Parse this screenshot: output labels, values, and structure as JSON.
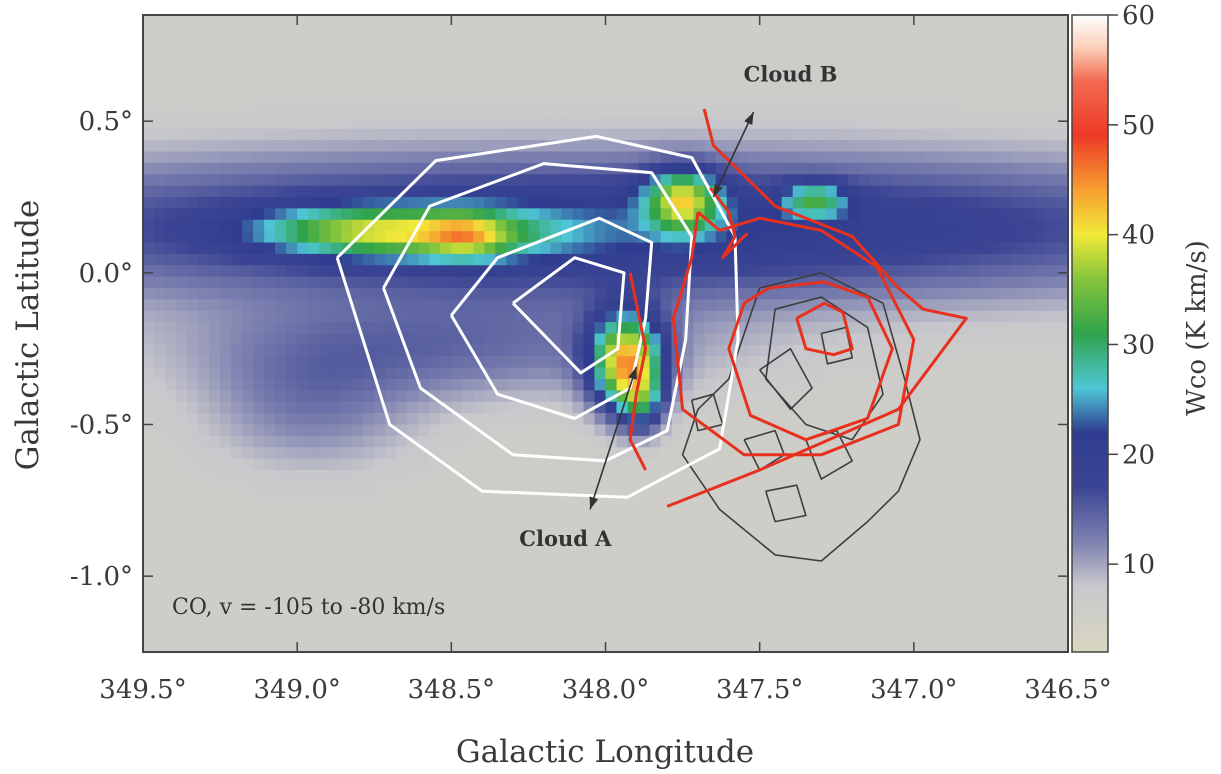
{
  "chart_data": {
    "type": "heatmap",
    "xlabel": "Galactic Longitude",
    "ylabel": "Galactic Latitude",
    "colorbar_label": "Wco (K km/s)",
    "xlim": [
      349.5,
      346.5
    ],
    "ylim": [
      -1.25,
      0.85
    ],
    "x_ticks": [
      {
        "value": 349.5,
        "label": "349.5°"
      },
      {
        "value": 349.0,
        "label": "349.0°"
      },
      {
        "value": 348.5,
        "label": "348.5°"
      },
      {
        "value": 348.0,
        "label": "348.0°"
      },
      {
        "value": 347.5,
        "label": "347.5°"
      },
      {
        "value": 347.0,
        "label": "347.0°"
      },
      {
        "value": 346.5,
        "label": "346.5°"
      }
    ],
    "y_ticks": [
      {
        "value": 0.5,
        "label": "0.5°"
      },
      {
        "value": 0.0,
        "label": "0.0°"
      },
      {
        "value": -0.5,
        "label": "-0.5°"
      },
      {
        "value": -1.0,
        "label": "-1.0°"
      }
    ],
    "colorbar": {
      "range": [
        2,
        60
      ],
      "ticks": [
        {
          "value": 10,
          "label": "10"
        },
        {
          "value": 20,
          "label": "20"
        },
        {
          "value": 30,
          "label": "30"
        },
        {
          "value": 40,
          "label": "40"
        },
        {
          "value": 50,
          "label": "50"
        },
        {
          "value": 60,
          "label": "60"
        }
      ],
      "stops": [
        {
          "v": 2,
          "c": "#d9d7c0"
        },
        {
          "v": 8,
          "c": "#c8c8cc"
        },
        {
          "v": 12,
          "c": "#7e82b0"
        },
        {
          "v": 17,
          "c": "#3c4594"
        },
        {
          "v": 22,
          "c": "#2f3c8f"
        },
        {
          "v": 26,
          "c": "#4fc6d6"
        },
        {
          "v": 31,
          "c": "#2fa34a"
        },
        {
          "v": 36,
          "c": "#86c53c"
        },
        {
          "v": 40,
          "c": "#f2ea38"
        },
        {
          "v": 44,
          "c": "#f6a030"
        },
        {
          "v": 49,
          "c": "#ee3a28"
        },
        {
          "v": 54,
          "c": "#f26a50"
        },
        {
          "v": 57,
          "c": "#fbcfb8"
        },
        {
          "v": 60,
          "c": "#ffffff"
        }
      ]
    },
    "emission_blobs": [
      {
        "l": 348.55,
        "b": 0.13,
        "sl": 0.28,
        "sb": 0.06,
        "amp": 14
      },
      {
        "l": 348.85,
        "b": 0.14,
        "sl": 0.22,
        "sb": 0.05,
        "amp": 10
      },
      {
        "l": 348.45,
        "b": 0.12,
        "sl": 0.09,
        "sb": 0.05,
        "amp": 10
      },
      {
        "l": 347.75,
        "b": 0.24,
        "sl": 0.08,
        "sb": 0.07,
        "amp": 22
      },
      {
        "l": 347.32,
        "b": 0.24,
        "sl": 0.07,
        "sb": 0.04,
        "amp": 14
      },
      {
        "l": 347.93,
        "b": -0.3,
        "sl": 0.08,
        "sb": 0.11,
        "amp": 34
      },
      {
        "l": 347.88,
        "b": -0.43,
        "sl": 0.05,
        "sb": 0.07,
        "amp": 12
      },
      {
        "l": 348.0,
        "b": 0.15,
        "sl": 1.6,
        "sb": 0.17,
        "amp": 16
      },
      {
        "l": 348.5,
        "b": -0.25,
        "sl": 0.6,
        "sb": 0.12,
        "amp": 7
      },
      {
        "l": 348.95,
        "b": -0.45,
        "sl": 0.25,
        "sb": 0.15,
        "amp": 6
      }
    ],
    "background_level": 6,
    "white_contours": [
      [
        [
          348.87,
          0.05
        ],
        [
          348.55,
          0.37
        ],
        [
          348.03,
          0.45
        ],
        [
          347.72,
          0.38
        ],
        [
          347.58,
          0.12
        ],
        [
          347.57,
          -0.22
        ],
        [
          347.63,
          -0.58
        ],
        [
          347.93,
          -0.74
        ],
        [
          348.4,
          -0.72
        ],
        [
          348.7,
          -0.5
        ],
        [
          348.87,
          0.05
        ]
      ],
      [
        [
          348.72,
          -0.05
        ],
        [
          348.57,
          0.22
        ],
        [
          348.2,
          0.36
        ],
        [
          347.85,
          0.33
        ],
        [
          347.72,
          0.12
        ],
        [
          347.74,
          -0.22
        ],
        [
          347.8,
          -0.52
        ],
        [
          348.0,
          -0.62
        ],
        [
          348.3,
          -0.6
        ],
        [
          348.6,
          -0.38
        ],
        [
          348.72,
          -0.05
        ]
      ],
      [
        [
          348.5,
          -0.14
        ],
        [
          348.35,
          0.05
        ],
        [
          348.02,
          0.18
        ],
        [
          347.85,
          0.1
        ],
        [
          347.87,
          -0.15
        ],
        [
          347.92,
          -0.38
        ],
        [
          348.1,
          -0.48
        ],
        [
          348.35,
          -0.4
        ],
        [
          348.5,
          -0.14
        ]
      ],
      [
        [
          348.3,
          -0.1
        ],
        [
          348.1,
          0.05
        ],
        [
          347.94,
          0.0
        ],
        [
          347.96,
          -0.25
        ],
        [
          348.08,
          -0.33
        ],
        [
          348.3,
          -0.1
        ]
      ]
    ],
    "red_contours": [
      [
        [
          347.68,
          0.54
        ],
        [
          347.65,
          0.42
        ],
        [
          347.45,
          0.22
        ],
        [
          347.2,
          0.12
        ],
        [
          347.05,
          -0.05
        ],
        [
          346.97,
          -0.12
        ],
        [
          346.83,
          -0.15
        ],
        [
          347.05,
          -0.45
        ],
        [
          347.5,
          -0.65
        ],
        [
          347.8,
          -0.77
        ]
      ],
      [
        [
          347.7,
          0.2
        ],
        [
          347.63,
          0.14
        ],
        [
          347.5,
          0.18
        ],
        [
          347.3,
          0.14
        ],
        [
          347.12,
          0.02
        ],
        [
          347.0,
          -0.22
        ],
        [
          347.05,
          -0.5
        ],
        [
          347.3,
          -0.6
        ],
        [
          347.55,
          -0.6
        ],
        [
          347.75,
          -0.45
        ],
        [
          347.78,
          -0.15
        ],
        [
          347.72,
          0.05
        ],
        [
          347.7,
          0.2
        ]
      ],
      [
        [
          347.47,
          -0.05
        ],
        [
          347.29,
          -0.03
        ],
        [
          347.15,
          -0.08
        ],
        [
          347.07,
          -0.25
        ],
        [
          347.15,
          -0.48
        ],
        [
          347.35,
          -0.55
        ],
        [
          347.53,
          -0.47
        ],
        [
          347.6,
          -0.25
        ],
        [
          347.55,
          -0.1
        ],
        [
          347.47,
          -0.05
        ]
      ],
      [
        [
          347.38,
          -0.15
        ],
        [
          347.29,
          -0.1
        ],
        [
          347.23,
          -0.13
        ],
        [
          347.2,
          -0.25
        ],
        [
          347.26,
          -0.27
        ],
        [
          347.35,
          -0.25
        ],
        [
          347.38,
          -0.15
        ]
      ],
      [
        [
          347.92,
          0.0
        ],
        [
          347.87,
          -0.25
        ],
        [
          347.9,
          -0.4
        ],
        [
          347.92,
          -0.55
        ],
        [
          347.87,
          -0.65
        ]
      ],
      [
        [
          347.66,
          0.28
        ],
        [
          347.6,
          0.2
        ],
        [
          347.58,
          0.12
        ],
        [
          347.62,
          0.05
        ],
        [
          347.54,
          0.13
        ]
      ]
    ],
    "gray_contours": [
      [
        [
          347.6,
          -0.35
        ],
        [
          347.5,
          -0.05
        ],
        [
          347.3,
          0.0
        ],
        [
          347.1,
          -0.1
        ],
        [
          347.03,
          -0.35
        ],
        [
          346.98,
          -0.55
        ],
        [
          347.05,
          -0.72
        ],
        [
          347.15,
          -0.82
        ],
        [
          347.3,
          -0.95
        ],
        [
          347.45,
          -0.93
        ],
        [
          347.63,
          -0.78
        ],
        [
          347.75,
          -0.6
        ],
        [
          347.7,
          -0.45
        ],
        [
          347.6,
          -0.35
        ]
      ],
      [
        [
          347.45,
          -0.12
        ],
        [
          347.3,
          -0.08
        ],
        [
          347.15,
          -0.18
        ],
        [
          347.1,
          -0.4
        ],
        [
          347.2,
          -0.55
        ],
        [
          347.35,
          -0.5
        ],
        [
          347.48,
          -0.35
        ],
        [
          347.45,
          -0.12
        ]
      ],
      [
        [
          347.5,
          -0.32
        ],
        [
          347.4,
          -0.25
        ],
        [
          347.33,
          -0.38
        ],
        [
          347.4,
          -0.45
        ],
        [
          347.5,
          -0.32
        ]
      ],
      [
        [
          347.35,
          -0.55
        ],
        [
          347.25,
          -0.52
        ],
        [
          347.2,
          -0.62
        ],
        [
          347.3,
          -0.68
        ],
        [
          347.35,
          -0.55
        ]
      ],
      [
        [
          347.55,
          -0.55
        ],
        [
          347.45,
          -0.52
        ],
        [
          347.42,
          -0.6
        ],
        [
          347.5,
          -0.65
        ],
        [
          347.55,
          -0.55
        ]
      ],
      [
        [
          347.72,
          -0.42
        ],
        [
          347.65,
          -0.4
        ],
        [
          347.62,
          -0.5
        ],
        [
          347.7,
          -0.52
        ],
        [
          347.72,
          -0.42
        ]
      ],
      [
        [
          347.3,
          -0.2
        ],
        [
          347.22,
          -0.18
        ],
        [
          347.2,
          -0.28
        ],
        [
          347.28,
          -0.3
        ],
        [
          347.3,
          -0.2
        ]
      ],
      [
        [
          347.48,
          -0.72
        ],
        [
          347.38,
          -0.7
        ],
        [
          347.35,
          -0.8
        ],
        [
          347.45,
          -0.82
        ],
        [
          347.48,
          -0.72
        ]
      ]
    ],
    "annotations": [
      {
        "text": "Cloud A",
        "label_l": 348.13,
        "label_b": -0.9,
        "arrow_from": [
          348.05,
          -0.78
        ],
        "arrow_to": [
          347.9,
          -0.31
        ]
      },
      {
        "text": "Cloud B",
        "label_l": 347.4,
        "label_b": 0.63,
        "arrow_from": [
          347.65,
          0.25
        ],
        "arrow_to": [
          347.52,
          0.53
        ]
      }
    ],
    "inset_text": "CO, v = -105 to -80 km/s"
  }
}
